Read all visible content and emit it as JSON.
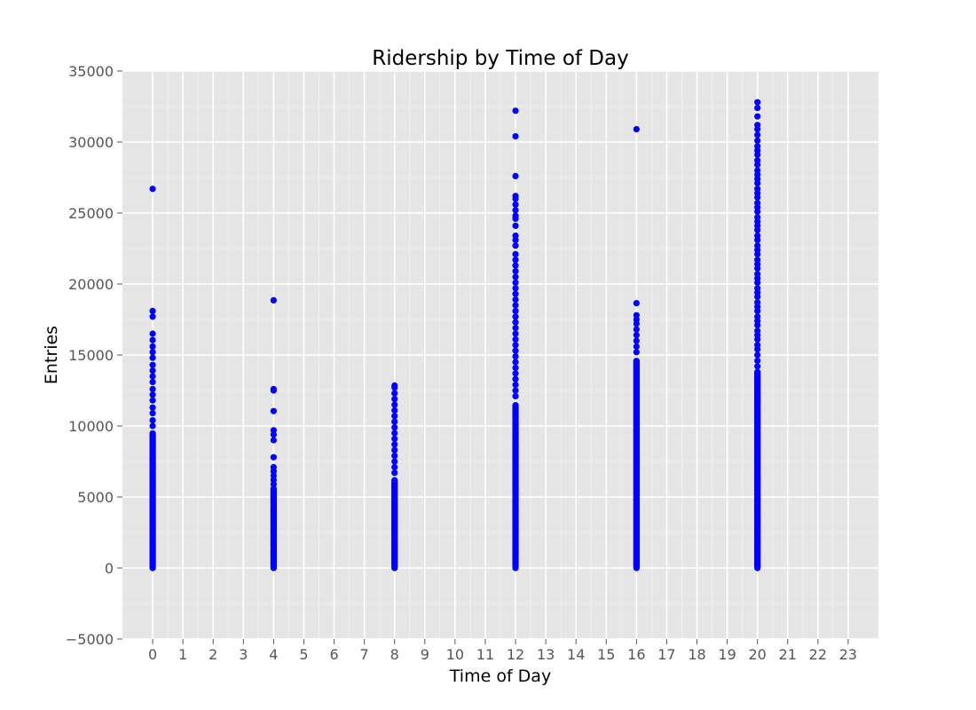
{
  "chart_data": {
    "type": "scatter",
    "title": "Ridership by Time of Day",
    "xlabel": "Time of Day",
    "ylabel": "Entries",
    "xlim": [
      -1,
      24
    ],
    "ylim": [
      -5000,
      35000
    ],
    "x_ticks": [
      0,
      1,
      2,
      3,
      4,
      5,
      6,
      7,
      8,
      9,
      10,
      11,
      12,
      13,
      14,
      15,
      16,
      17,
      18,
      19,
      20,
      21,
      22,
      23
    ],
    "y_ticks": [
      -5000,
      0,
      5000,
      10000,
      15000,
      20000,
      25000,
      30000,
      35000
    ],
    "grid": true,
    "series": [
      {
        "color": "#0000ff",
        "columns": [
          {
            "x": 0,
            "dense_max": 9500,
            "outliers": [
              26700,
              18100,
              17700,
              16500,
              16050,
              15600,
              15200,
              14800,
              14300,
              13900,
              13500,
              13100,
              12600,
              12200,
              11800,
              11300,
              10900,
              10400,
              10000
            ]
          },
          {
            "x": 4,
            "dense_max": 5600,
            "outliers": [
              18850,
              12600,
              12500,
              11050,
              9700,
              9400,
              9000,
              7800,
              7100,
              6800,
              6500,
              6200,
              5900
            ]
          },
          {
            "x": 8,
            "dense_max": 6200,
            "outliers": [
              12850,
              12700,
              12300,
              11900,
              11500,
              11100,
              10700,
              10300,
              9900,
              9500,
              9100,
              8700,
              8300,
              7900,
              7500,
              7100,
              6700
            ]
          },
          {
            "x": 12,
            "dense_max": 11500,
            "outliers": [
              32200,
              30400,
              27600,
              26200,
              26000,
              25600,
              25200,
              24800,
              24600,
              24100,
              23400,
              23100,
              22700,
              22100,
              21700,
              21300,
              20900,
              20500,
              20100,
              19700,
              19300,
              18900,
              18500,
              18100,
              17700,
              17300,
              16900,
              16500,
              16100,
              15700,
              15300,
              14900,
              14500,
              14100,
              13700,
              13300,
              12900,
              12500,
              12100
            ]
          },
          {
            "x": 16,
            "dense_max": 14600,
            "outliers": [
              30900,
              18650,
              17800,
              17500,
              17200,
              16800,
              16400,
              16000,
              15600,
              15200
            ]
          },
          {
            "x": 20,
            "dense_max": 13800,
            "outliers": [
              32800,
              32400,
              31800,
              31200,
              30900,
              30500,
              30100,
              29700,
              29400,
              29100,
              28700,
              28400,
              28000,
              27700,
              27400,
              27100,
              26700,
              26400,
              26100,
              25700,
              25400,
              25100,
              24700,
              24400,
              24100,
              23800,
              23400,
              23100,
              22700,
              22400,
              22100,
              21700,
              21400,
              21100,
              20700,
              20400,
              20100,
              19700,
              19400,
              19100,
              18700,
              18400,
              18100,
              17700,
              17400,
              17100,
              16700,
              16400,
              16100,
              15700,
              15400,
              15000,
              14600,
              14200
            ]
          }
        ]
      }
    ]
  }
}
